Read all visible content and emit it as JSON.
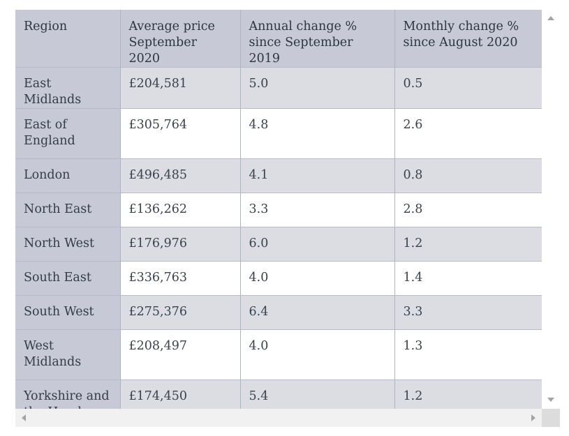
{
  "table": {
    "headers": [
      "Region",
      "Average price\nSeptember 2020",
      "Annual change %\nsince September 2019",
      "Monthly change %\nsince August 2020"
    ],
    "rows": [
      {
        "region": "East Midlands",
        "price": "£204,581",
        "annual": "5.0",
        "monthly": "0.5"
      },
      {
        "region": "East of\nEngland",
        "price": "£305,764",
        "annual": "4.8",
        "monthly": "2.6"
      },
      {
        "region": "London",
        "price": "£496,485",
        "annual": "4.1",
        "monthly": "0.8"
      },
      {
        "region": "North East",
        "price": "£136,262",
        "annual": "3.3",
        "monthly": "2.8"
      },
      {
        "region": "North West",
        "price": "£176,976",
        "annual": "6.0",
        "monthly": "1.2"
      },
      {
        "region": "South East",
        "price": "£336,763",
        "annual": "4.0",
        "monthly": "1.4"
      },
      {
        "region": "South West",
        "price": "£275,376",
        "annual": "6.4",
        "monthly": "3.3"
      },
      {
        "region": "West\nMidlands",
        "price": "£208,497",
        "annual": "4.0",
        "monthly": "1.3"
      },
      {
        "region": "Yorkshire and\nthe Humber",
        "price": "£174,450",
        "annual": "5.4",
        "monthly": "1.2"
      }
    ]
  },
  "colors": {
    "header_bg": "#c7cad6",
    "region_col_bg": "#c7cad6",
    "row_shade_bg": "#dcdde3",
    "row_plain_bg": "#ffffff",
    "scrollbar_track": "#f1f1f1"
  },
  "icons": {
    "scroll_up": "triangle-up",
    "scroll_down": "triangle-down",
    "scroll_left": "triangle-left",
    "scroll_right": "triangle-right"
  }
}
